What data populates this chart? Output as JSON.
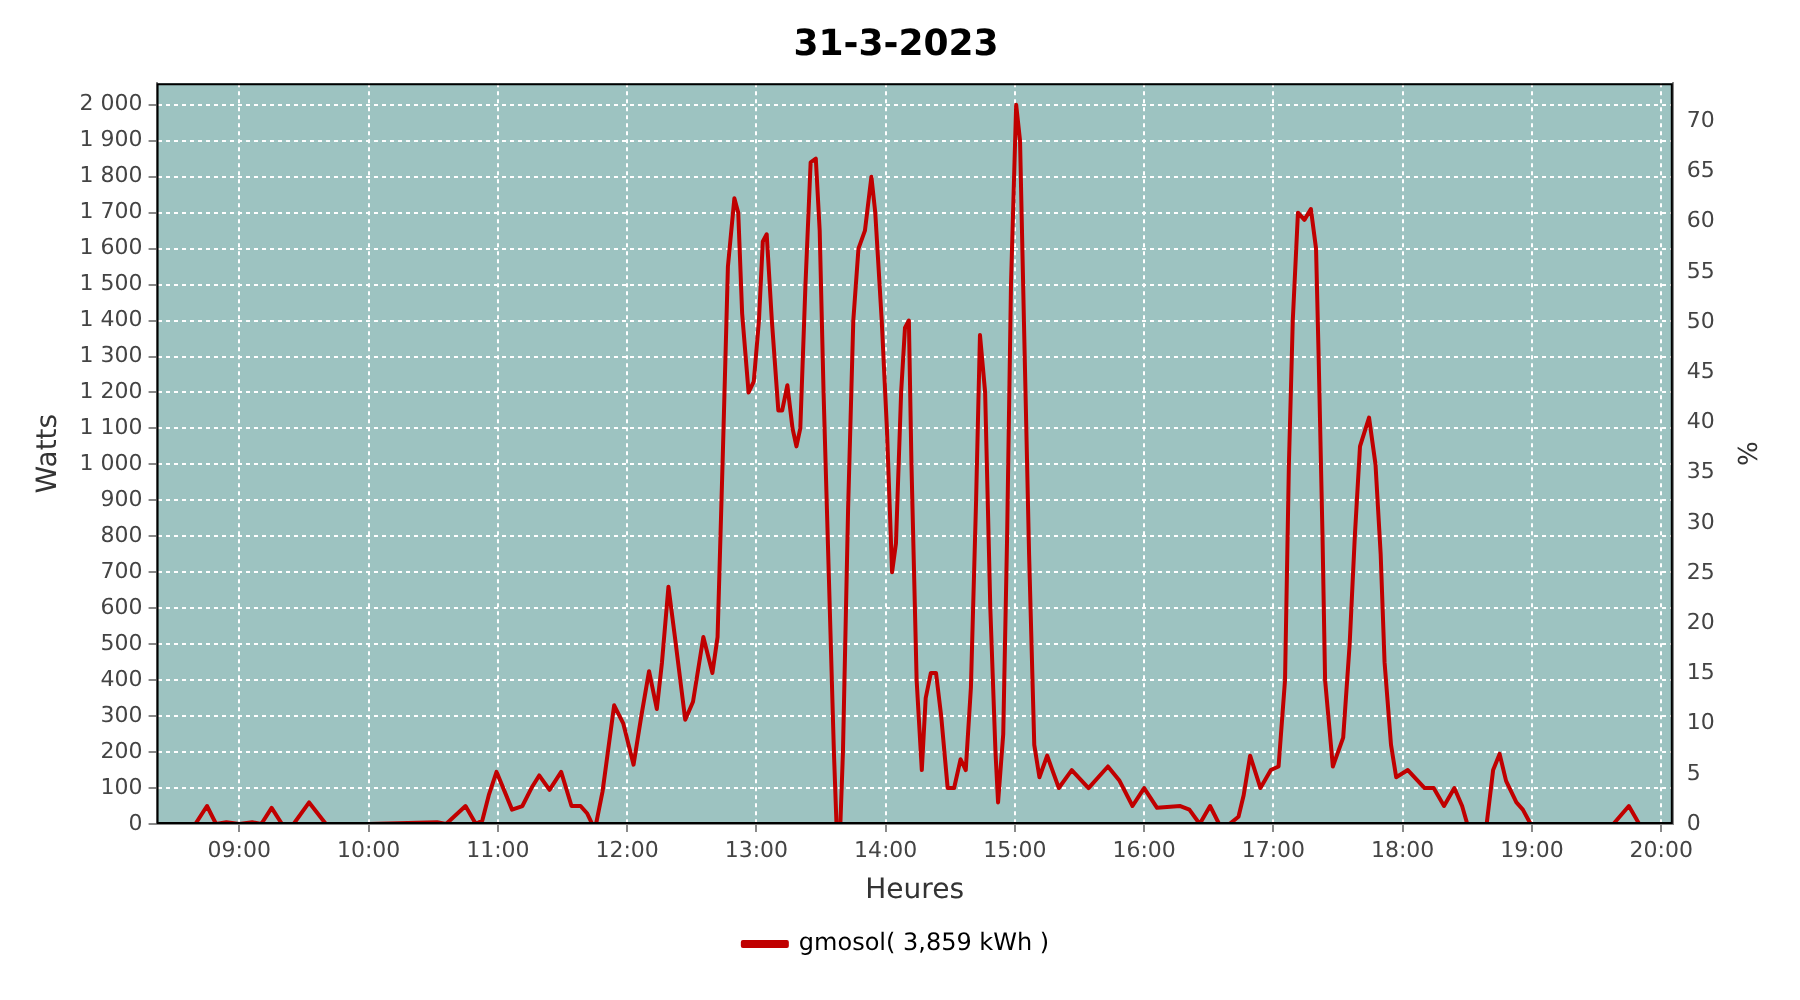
{
  "chart_data": {
    "type": "line",
    "title": "31-3-2023",
    "xlabel": "Heures",
    "ylabel": "Watts",
    "y2label": "%",
    "x": [
      8.58,
      8.66,
      8.75,
      8.82,
      8.9,
      9.0,
      9.1,
      9.17,
      9.25,
      9.33,
      9.42,
      9.54,
      9.67,
      10.0,
      10.53,
      10.6,
      10.75,
      10.83,
      10.88,
      10.93,
      10.99,
      11.11,
      11.19,
      11.26,
      11.32,
      11.4,
      11.49,
      11.57,
      11.64,
      11.69,
      11.73,
      11.76,
      11.81,
      11.9,
      11.97,
      12.05,
      12.11,
      12.17,
      12.23,
      12.27,
      12.32,
      12.37,
      12.45,
      12.51,
      12.59,
      12.66,
      12.7,
      12.74,
      12.78,
      12.83,
      12.86,
      12.89,
      12.94,
      12.98,
      13.02,
      13.05,
      13.08,
      13.12,
      13.17,
      13.2,
      13.24,
      13.28,
      13.31,
      13.34,
      13.38,
      13.42,
      13.46,
      13.49,
      13.52,
      13.56,
      13.6,
      13.62,
      13.65,
      13.67,
      13.71,
      13.75,
      13.79,
      13.84,
      13.89,
      13.92,
      13.97,
      14.01,
      14.05,
      14.08,
      14.12,
      14.15,
      14.18,
      14.2,
      14.24,
      14.28,
      14.31,
      14.35,
      14.39,
      14.43,
      14.48,
      14.53,
      14.58,
      14.62,
      14.66,
      14.7,
      14.73,
      14.77,
      14.81,
      14.85,
      14.87,
      14.91,
      14.94,
      14.97,
      15.01,
      15.04,
      15.07,
      15.11,
      15.15,
      15.19,
      15.25,
      15.29,
      15.34,
      15.44,
      15.57,
      15.72,
      15.81,
      15.91,
      16.0,
      16.1,
      16.28,
      16.35,
      16.43,
      16.51,
      16.58,
      16.66,
      16.73,
      16.77,
      16.82,
      16.9,
      16.98,
      17.04,
      17.09,
      17.12,
      17.15,
      17.19,
      17.24,
      17.29,
      17.33,
      17.35,
      17.38,
      17.4,
      17.46,
      17.54,
      17.59,
      17.63,
      17.67,
      17.74,
      17.79,
      17.83,
      17.86,
      17.91,
      17.95,
      18.04,
      18.17,
      18.24,
      18.32,
      18.4,
      18.46,
      18.5,
      18.65,
      18.7,
      18.75,
      18.8,
      18.88,
      18.93,
      18.99,
      19.63,
      19.75,
      19.83
    ],
    "series": [
      {
        "name": "gmosol( 3,859 kWh )",
        "color": "#c00000",
        "values": [
          0,
          0,
          50,
          0,
          5,
          0,
          5,
          0,
          45,
          0,
          0,
          60,
          0,
          0,
          5,
          0,
          50,
          0,
          10,
          80,
          145,
          40,
          50,
          100,
          135,
          95,
          145,
          50,
          50,
          30,
          0,
          0,
          90,
          330,
          280,
          165,
          300,
          425,
          320,
          450,
          660,
          520,
          290,
          340,
          520,
          420,
          520,
          1020,
          1550,
          1740,
          1700,
          1420,
          1200,
          1230,
          1400,
          1620,
          1640,
          1400,
          1150,
          1150,
          1220,
          1100,
          1050,
          1100,
          1500,
          1840,
          1850,
          1650,
          1200,
          700,
          200,
          0,
          0,
          200,
          880,
          1400,
          1600,
          1650,
          1800,
          1700,
          1400,
          1100,
          700,
          780,
          1200,
          1380,
          1400,
          1000,
          400,
          150,
          350,
          420,
          420,
          300,
          100,
          100,
          180,
          150,
          380,
          900,
          1360,
          1200,
          600,
          200,
          60,
          250,
          800,
          1500,
          2000,
          1900,
          1400,
          750,
          220,
          130,
          190,
          150,
          100,
          150,
          100,
          160,
          120,
          50,
          100,
          45,
          50,
          40,
          0,
          50,
          0,
          0,
          20,
          80,
          190,
          100,
          150,
          160,
          400,
          1000,
          1400,
          1700,
          1680,
          1710,
          1600,
          1300,
          800,
          400,
          160,
          240,
          500,
          800,
          1050,
          1130,
          1000,
          750,
          450,
          220,
          130,
          150,
          100,
          100,
          50,
          100,
          50,
          0,
          0,
          150,
          195,
          120,
          60,
          40,
          0,
          0,
          50,
          0
        ]
      }
    ],
    "xlim": [
      8.36,
      20.09
    ],
    "xticks": [
      {
        "value": 9,
        "label": "09:00"
      },
      {
        "value": 10,
        "label": "10:00"
      },
      {
        "value": 11,
        "label": "11:00"
      },
      {
        "value": 12,
        "label": "12:00"
      },
      {
        "value": 13,
        "label": "13:00"
      },
      {
        "value": 14,
        "label": "14:00"
      },
      {
        "value": 15,
        "label": "15:00"
      },
      {
        "value": 16,
        "label": "16:00"
      },
      {
        "value": 17,
        "label": "17:00"
      },
      {
        "value": 18,
        "label": "18:00"
      },
      {
        "value": 19,
        "label": "19:00"
      },
      {
        "value": 20,
        "label": "20:00"
      }
    ],
    "ylim": [
      0,
      2060
    ],
    "yticks": [
      {
        "value": 0,
        "label": "0"
      },
      {
        "value": 100,
        "label": "100"
      },
      {
        "value": 200,
        "label": "200"
      },
      {
        "value": 300,
        "label": "300"
      },
      {
        "value": 400,
        "label": "400"
      },
      {
        "value": 500,
        "label": "500"
      },
      {
        "value": 600,
        "label": "600"
      },
      {
        "value": 700,
        "label": "700"
      },
      {
        "value": 800,
        "label": "800"
      },
      {
        "value": 900,
        "label": "900"
      },
      {
        "value": 1000,
        "label": "1 000"
      },
      {
        "value": 1100,
        "label": "1 100"
      },
      {
        "value": 1200,
        "label": "1 200"
      },
      {
        "value": 1300,
        "label": "1 300"
      },
      {
        "value": 1400,
        "label": "1 400"
      },
      {
        "value": 1500,
        "label": "1 500"
      },
      {
        "value": 1600,
        "label": "1 600"
      },
      {
        "value": 1700,
        "label": "1 700"
      },
      {
        "value": 1800,
        "label": "1 800"
      },
      {
        "value": 1900,
        "label": "1 900"
      },
      {
        "value": 2000,
        "label": "2 000"
      }
    ],
    "y2lim": [
      0,
      73.8
    ],
    "y2ticks": [
      0,
      5,
      10,
      15,
      20,
      25,
      30,
      35,
      40,
      45,
      50,
      55,
      60,
      65,
      70
    ],
    "grid": true,
    "legend": "bottom",
    "marker": "none",
    "line_style": "solid"
  }
}
